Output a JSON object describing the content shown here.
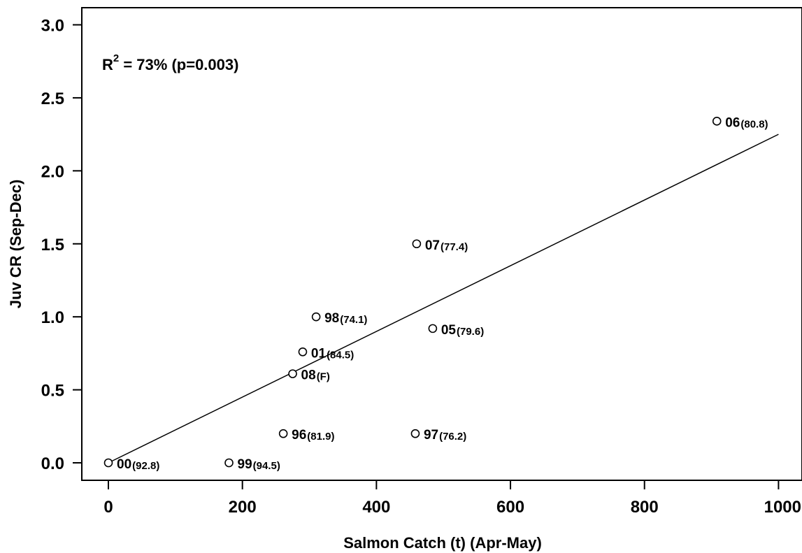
{
  "chart_data": {
    "type": "scatter",
    "title": "",
    "xlabel": "Salmon Catch (t) (Apr-May)",
    "ylabel": "Juv CR (Sep-Dec)",
    "xlim": [
      -40,
      1040
    ],
    "ylim": [
      -0.12,
      3.12
    ],
    "xticks": [
      0,
      200,
      400,
      600,
      800,
      1000
    ],
    "yticks": [
      0.0,
      0.5,
      1.0,
      1.5,
      2.0,
      2.5,
      3.0
    ],
    "xtick_labels": [
      "0",
      "200",
      "400",
      "600",
      "800",
      "1000"
    ],
    "ytick_labels": [
      "0.0",
      "0.5",
      "1.0",
      "1.5",
      "2.0",
      "2.5",
      "3.0"
    ],
    "grid": false,
    "annotation": {
      "prefix": "R",
      "superscript": "2",
      "text": " = 73% (p=0.003)"
    },
    "fit_line": {
      "x": [
        0,
        1000
      ],
      "y": [
        0.0,
        2.25
      ]
    },
    "points": [
      {
        "label": "00",
        "value_label": "(92.8)",
        "x": 0,
        "y": 0.0
      },
      {
        "label": "99",
        "value_label": "(94.5)",
        "x": 180,
        "y": 0.0
      },
      {
        "label": "96",
        "value_label": "(81.9)",
        "x": 261,
        "y": 0.2
      },
      {
        "label": "97",
        "value_label": "(76.2)",
        "x": 458,
        "y": 0.2
      },
      {
        "label": "08",
        "value_label": "(F)",
        "x": 275,
        "y": 0.61
      },
      {
        "label": "01",
        "value_label": "(84.5)",
        "x": 290,
        "y": 0.76
      },
      {
        "label": "98",
        "value_label": "(74.1)",
        "x": 310,
        "y": 1.0
      },
      {
        "label": "05",
        "value_label": "(79.6)",
        "x": 484,
        "y": 0.92
      },
      {
        "label": "07",
        "value_label": "(77.4)",
        "x": 460,
        "y": 1.5
      },
      {
        "label": "06",
        "value_label": "(80.8)",
        "x": 908,
        "y": 2.34
      }
    ]
  }
}
